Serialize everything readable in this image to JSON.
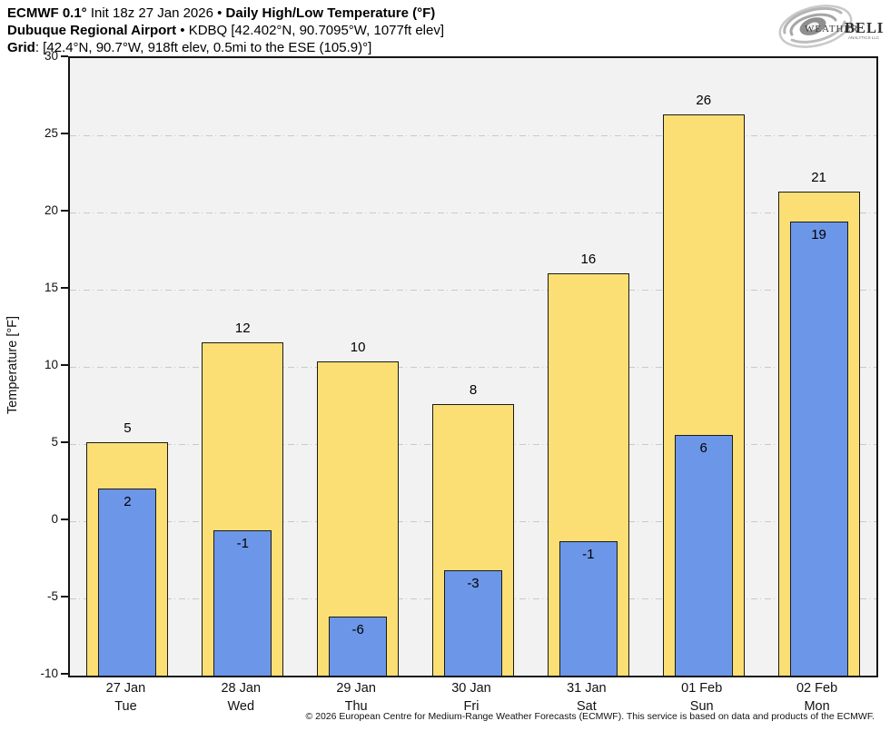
{
  "header": {
    "line1_bold1": "ECMWF 0.1°",
    "line1_normal": " Init 18z 27 Jan 2026 • ",
    "line1_bold2": "Daily High/Low Temperature (°F)",
    "line2_bold": "Dubuque Regional Airport",
    "line2_normal": " • KDBQ [42.402°N, 90.7095°W, 1077ft elev]",
    "line3_bold": "Grid",
    "line3_normal": ": [42.4°N, 90.7°W, 918ft elev, 0.5mi to the ESE (105.9)°]"
  },
  "logo": {
    "brand_part1": "Weather",
    "brand_part2": "BELL",
    "subtext": "Analytics LLC"
  },
  "footer": {
    "copyright": "© 2026 European Centre for Medium-Range Weather Forecasts (ECMWF). This service is based on data and products of the ECMWF."
  },
  "chart_data": {
    "type": "bar",
    "title": "ECMWF 0.1° Init 18z 27 Jan 2026 • Daily High/Low Temperature (°F)",
    "subtitle": "Dubuque Regional Airport • KDBQ [42.402°N, 90.7095°W, 1077ft elev]",
    "xlabel": "",
    "ylabel": "Temperature [°F]",
    "ylim": [
      -10,
      30
    ],
    "yticks": [
      30,
      25,
      20,
      15,
      10,
      5,
      0,
      -5,
      -10
    ],
    "grid": true,
    "legend_position": "none",
    "bar_base": -10,
    "categories": [
      "27 Jan Tue",
      "28 Jan Wed",
      "29 Jan Thu",
      "30 Jan Fri",
      "31 Jan Sat",
      "01 Feb Sun",
      "02 Feb Mon"
    ],
    "series": [
      {
        "name": "Daily High",
        "color": "#FBDF74",
        "values": [
          5,
          12,
          10,
          8,
          16,
          26,
          21
        ]
      },
      {
        "name": "Daily Low",
        "color": "#6C96E8",
        "values": [
          2,
          -1,
          -6,
          -3,
          -1,
          6,
          19
        ]
      }
    ],
    "days": [
      {
        "date": "27 Jan",
        "weekday": "Tue",
        "high_label": "5",
        "low_label": "2",
        "high_value": 5.1,
        "low_value": 2.1
      },
      {
        "date": "28 Jan",
        "weekday": "Wed",
        "high_label": "12",
        "low_label": "-1",
        "high_value": 11.6,
        "low_value": -0.6
      },
      {
        "date": "29 Jan",
        "weekday": "Thu",
        "high_label": "10",
        "low_label": "-6",
        "high_value": 10.35,
        "low_value": -6.2
      },
      {
        "date": "30 Jan",
        "weekday": "Fri",
        "high_label": "8",
        "low_label": "-3",
        "high_value": 7.6,
        "low_value": -3.2
      },
      {
        "date": "31 Jan",
        "weekday": "Sat",
        "high_label": "16",
        "low_label": "-1",
        "high_value": 16.05,
        "low_value": -1.3
      },
      {
        "date": "01 Feb",
        "weekday": "Sun",
        "high_label": "26",
        "low_label": "6",
        "high_value": 26.35,
        "low_value": 5.6
      },
      {
        "date": "02 Feb",
        "weekday": "Mon",
        "high_label": "21",
        "low_label": "19",
        "high_value": 21.35,
        "low_value": 19.4
      }
    ],
    "colors": {
      "high_bar": "#FBDF74",
      "low_bar": "#6C96E8",
      "bar_outline": "#1a1a1a",
      "plot_background": "#f2f2f2",
      "gridline": "#c9c9c9"
    }
  }
}
